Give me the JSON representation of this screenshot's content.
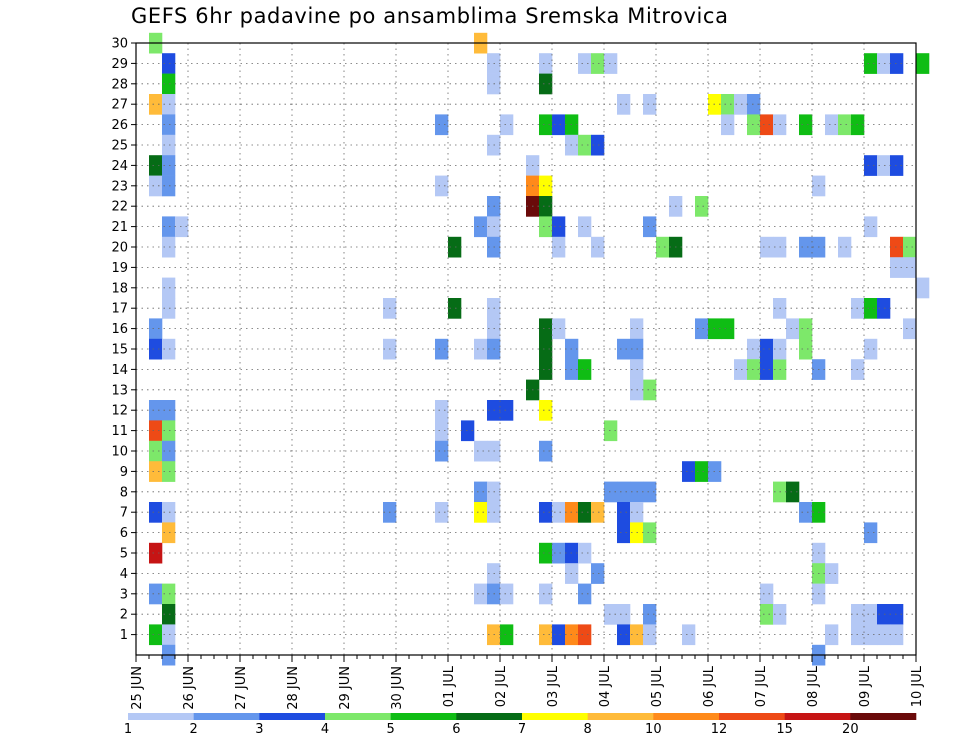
{
  "chart_data": {
    "type": "heatmap",
    "title": "GEFS 6hr padavine po ansamblima Sremska Mitrovica",
    "xlabel": "",
    "ylabel": "",
    "x_tick_labels": [
      "25 JUN",
      "26 JUN",
      "27 JUN",
      "28 JUN",
      "29 JUN",
      "30 JUN",
      "01 JUL",
      "02 JUL",
      "03 JUL",
      "04 JUL",
      "05 JUL",
      "06 JUL",
      "07 JUL",
      "08 JUL",
      "09 JUL",
      "10 JUL"
    ],
    "y_tick_labels": [
      "1",
      "2",
      "3",
      "4",
      "5",
      "6",
      "7",
      "8",
      "9",
      "10",
      "11",
      "12",
      "13",
      "14",
      "15",
      "16",
      "17",
      "18",
      "19",
      "20",
      "21",
      "22",
      "23",
      "24",
      "25",
      "26",
      "27",
      "28",
      "29",
      "30"
    ],
    "grid": true,
    "colorbar": {
      "labels": [
        "1",
        "2",
        "3",
        "4",
        "5",
        "6",
        "7",
        "8",
        "10",
        "12",
        "15",
        "20"
      ],
      "colors": [
        "#b4c8f5",
        "#6496ec",
        "#1e4ce0",
        "#7de86a",
        "#0fbd14",
        "#066c16",
        "#ffff00",
        "#ffbb3a",
        "#ff8a1a",
        "#ee4a16",
        "#c61414",
        "#6a0a0a"
      ]
    },
    "cells": [
      [
        25.25,
        30,
        3
      ],
      [
        25.5,
        29,
        2
      ],
      [
        25.5,
        28,
        4
      ],
      [
        25.25,
        27,
        7
      ],
      [
        25.5,
        27,
        0
      ],
      [
        25.5,
        26,
        1
      ],
      [
        25.5,
        25,
        0
      ],
      [
        25.25,
        24,
        5
      ],
      [
        25.5,
        24,
        1
      ],
      [
        25.25,
        23,
        0
      ],
      [
        25.5,
        23,
        1
      ],
      [
        25.5,
        21,
        1
      ],
      [
        25.75,
        21,
        0
      ],
      [
        25.5,
        20,
        0
      ],
      [
        25.5,
        18,
        0
      ],
      [
        25.5,
        17,
        0
      ],
      [
        25.25,
        16,
        1
      ],
      [
        25.25,
        15,
        2
      ],
      [
        25.5,
        15,
        0
      ],
      [
        25.25,
        12,
        1
      ],
      [
        25.5,
        12,
        1
      ],
      [
        25.25,
        11,
        9
      ],
      [
        25.5,
        11,
        3
      ],
      [
        25.25,
        10,
        3
      ],
      [
        25.5,
        10,
        1
      ],
      [
        25.25,
        9,
        7
      ],
      [
        25.5,
        9,
        3
      ],
      [
        25.25,
        7,
        2
      ],
      [
        25.5,
        7,
        0
      ],
      [
        25.5,
        6,
        7
      ],
      [
        25.25,
        5,
        10
      ],
      [
        25.25,
        3,
        1
      ],
      [
        25.5,
        3,
        3
      ],
      [
        25.5,
        2,
        5
      ],
      [
        25.25,
        1,
        4
      ],
      [
        25.5,
        1,
        0
      ],
      [
        25.5,
        0,
        1
      ],
      [
        29.75,
        17,
        0
      ],
      [
        29.75,
        15,
        0
      ],
      [
        29.75,
        7,
        1
      ],
      [
        30.75,
        26,
        1
      ],
      [
        30.75,
        23,
        0
      ],
      [
        31,
        20,
        5
      ],
      [
        31,
        17,
        5
      ],
      [
        30.75,
        15,
        1
      ],
      [
        30.75,
        12,
        0
      ],
      [
        30.75,
        11,
        0
      ],
      [
        30.75,
        10,
        1
      ],
      [
        30.75,
        7,
        0
      ],
      [
        31.5,
        30,
        7
      ],
      [
        31.75,
        29,
        0
      ],
      [
        31.75,
        28,
        0
      ],
      [
        32,
        26,
        0
      ],
      [
        31.75,
        25,
        0
      ],
      [
        31.75,
        22,
        1
      ],
      [
        31.5,
        21,
        1
      ],
      [
        31.75,
        21,
        0
      ],
      [
        31.75,
        20,
        1
      ],
      [
        31.75,
        17,
        0
      ],
      [
        31.75,
        16,
        0
      ],
      [
        31.5,
        15,
        0
      ],
      [
        31.75,
        15,
        1
      ],
      [
        31.25,
        11,
        2
      ],
      [
        31.75,
        12,
        2
      ],
      [
        32,
        12,
        2
      ],
      [
        31.5,
        10,
        0
      ],
      [
        31.75,
        10,
        0
      ],
      [
        31.5,
        8,
        1
      ],
      [
        31.75,
        8,
        0
      ],
      [
        31.5,
        7,
        6
      ],
      [
        31.75,
        7,
        0
      ],
      [
        31.75,
        4,
        0
      ],
      [
        31.5,
        3,
        0
      ],
      [
        31.75,
        3,
        1
      ],
      [
        32,
        3,
        0
      ],
      [
        31.75,
        1,
        7
      ],
      [
        32,
        1,
        4
      ],
      [
        32.75,
        29,
        0
      ],
      [
        32.75,
        28,
        5
      ],
      [
        32.75,
        26,
        4
      ],
      [
        33,
        26,
        2
      ],
      [
        33.25,
        26,
        4
      ],
      [
        33.25,
        25,
        0
      ],
      [
        33.5,
        25,
        3
      ],
      [
        33.75,
        25,
        2
      ],
      [
        32.5,
        24,
        0
      ],
      [
        32.5,
        23,
        8
      ],
      [
        32.75,
        23,
        6
      ],
      [
        32.5,
        22,
        11
      ],
      [
        32.75,
        22,
        5
      ],
      [
        32.75,
        21,
        3
      ],
      [
        33,
        21,
        2
      ],
      [
        33.5,
        21,
        0
      ],
      [
        33,
        20,
        0
      ],
      [
        32.75,
        16,
        5
      ],
      [
        33,
        16,
        0
      ],
      [
        32.75,
        15,
        5
      ],
      [
        33.25,
        15,
        1
      ],
      [
        32.75,
        14,
        5
      ],
      [
        33.25,
        14,
        1
      ],
      [
        33.5,
        14,
        4
      ],
      [
        32.5,
        13,
        5
      ],
      [
        32.75,
        12,
        6
      ],
      [
        32.75,
        10,
        1
      ],
      [
        32.75,
        7,
        2
      ],
      [
        33,
        7,
        0
      ],
      [
        33.25,
        7,
        8
      ],
      [
        33.5,
        7,
        5
      ],
      [
        33.75,
        7,
        7
      ],
      [
        32.75,
        5,
        4
      ],
      [
        33,
        5,
        1
      ],
      [
        33.25,
        5,
        2
      ],
      [
        33.5,
        5,
        0
      ],
      [
        33.25,
        4,
        0
      ],
      [
        33.75,
        4,
        1
      ],
      [
        32.75,
        3,
        0
      ],
      [
        33.5,
        3,
        1
      ],
      [
        32.75,
        1,
        7
      ],
      [
        33,
        1,
        2
      ],
      [
        33.25,
        1,
        8
      ],
      [
        33.5,
        1,
        9
      ],
      [
        33.5,
        29,
        0
      ],
      [
        33.75,
        29,
        3
      ],
      [
        34,
        29,
        0
      ],
      [
        33.75,
        20,
        0
      ],
      [
        34.25,
        27,
        0
      ],
      [
        34.75,
        27,
        0
      ],
      [
        34.25,
        15,
        1
      ],
      [
        34.5,
        16,
        0
      ],
      [
        34.5,
        15,
        1
      ],
      [
        34.5,
        14,
        0
      ],
      [
        34.75,
        13,
        3
      ],
      [
        34.5,
        13,
        0
      ],
      [
        34,
        11,
        3
      ],
      [
        34,
        8,
        1
      ],
      [
        34.25,
        8,
        1
      ],
      [
        34.5,
        8,
        1
      ],
      [
        34.75,
        8,
        1
      ],
      [
        34.25,
        7,
        2
      ],
      [
        34.5,
        7,
        0
      ],
      [
        34.25,
        6,
        2
      ],
      [
        34.5,
        6,
        6
      ],
      [
        34.75,
        6,
        3
      ],
      [
        34,
        2,
        0
      ],
      [
        34.25,
        2,
        0
      ],
      [
        34.75,
        2,
        1
      ],
      [
        34.25,
        1,
        2
      ],
      [
        34.5,
        1,
        7
      ],
      [
        34.75,
        1,
        0
      ],
      [
        34.75,
        21,
        1
      ],
      [
        35,
        20,
        3
      ],
      [
        35.25,
        20,
        5
      ],
      [
        35.25,
        22,
        0
      ],
      [
        35.5,
        9,
        2
      ],
      [
        35.75,
        9,
        4
      ],
      [
        36,
        9,
        1
      ],
      [
        35.5,
        1,
        0
      ],
      [
        35.75,
        22,
        3
      ],
      [
        35.75,
        16,
        1
      ],
      [
        36,
        16,
        4
      ],
      [
        36.25,
        16,
        4
      ],
      [
        36,
        27,
        6
      ],
      [
        36.25,
        27,
        3
      ],
      [
        36.5,
        27,
        0
      ],
      [
        36.75,
        27,
        1
      ],
      [
        36.25,
        26,
        0
      ],
      [
        36.75,
        26,
        3
      ],
      [
        37,
        26,
        9
      ],
      [
        37.25,
        26,
        0
      ],
      [
        36.5,
        14,
        0
      ],
      [
        36.75,
        15,
        0
      ],
      [
        36.75,
        14,
        3
      ],
      [
        37,
        15,
        2
      ],
      [
        37,
        14,
        2
      ],
      [
        37.25,
        14,
        3
      ],
      [
        37.25,
        17,
        0
      ],
      [
        37.5,
        16,
        0
      ],
      [
        37.25,
        15,
        0
      ],
      [
        37.75,
        16,
        3
      ],
      [
        37.75,
        15,
        3
      ],
      [
        37,
        20,
        0
      ],
      [
        37.25,
        20,
        0
      ],
      [
        37.25,
        8,
        3
      ],
      [
        37.5,
        8,
        5
      ],
      [
        37,
        3,
        0
      ],
      [
        37,
        2,
        3
      ],
      [
        37.25,
        2,
        0
      ],
      [
        37.75,
        26,
        4
      ],
      [
        37.75,
        20,
        1
      ],
      [
        38,
        20,
        1
      ],
      [
        37.75,
        7,
        1
      ],
      [
        38,
        7,
        4
      ],
      [
        38,
        5,
        0
      ],
      [
        38,
        4,
        3
      ],
      [
        38.25,
        4,
        0
      ],
      [
        38,
        3,
        0
      ],
      [
        38,
        0,
        1
      ],
      [
        38.25,
        1,
        0
      ],
      [
        38,
        23,
        0
      ],
      [
        38,
        14,
        1
      ],
      [
        38.25,
        26,
        0
      ],
      [
        38.5,
        26,
        3
      ],
      [
        38.75,
        26,
        4
      ],
      [
        38.5,
        20,
        0
      ],
      [
        38.75,
        2,
        0
      ],
      [
        38.75,
        1,
        0
      ],
      [
        38.75,
        17,
        0
      ],
      [
        38.75,
        14,
        0
      ],
      [
        39,
        29,
        4
      ],
      [
        39.25,
        29,
        0
      ],
      [
        39.5,
        29,
        2
      ],
      [
        39,
        24,
        2
      ],
      [
        39.25,
        24,
        0
      ],
      [
        39.5,
        24,
        2
      ],
      [
        39,
        21,
        0
      ],
      [
        39.5,
        20,
        9
      ],
      [
        39.75,
        20,
        3
      ],
      [
        39.5,
        19,
        0
      ],
      [
        39.75,
        19,
        0
      ],
      [
        40,
        18,
        0
      ],
      [
        39,
        17,
        4
      ],
      [
        39.25,
        17,
        2
      ],
      [
        39.75,
        16,
        0
      ],
      [
        39,
        15,
        0
      ],
      [
        39,
        6,
        1
      ],
      [
        39,
        2,
        0
      ],
      [
        39.25,
        2,
        2
      ],
      [
        39.5,
        2,
        2
      ],
      [
        39,
        1,
        0
      ],
      [
        39.25,
        1,
        0
      ],
      [
        39.5,
        1,
        0
      ],
      [
        40,
        29,
        4
      ]
    ]
  }
}
